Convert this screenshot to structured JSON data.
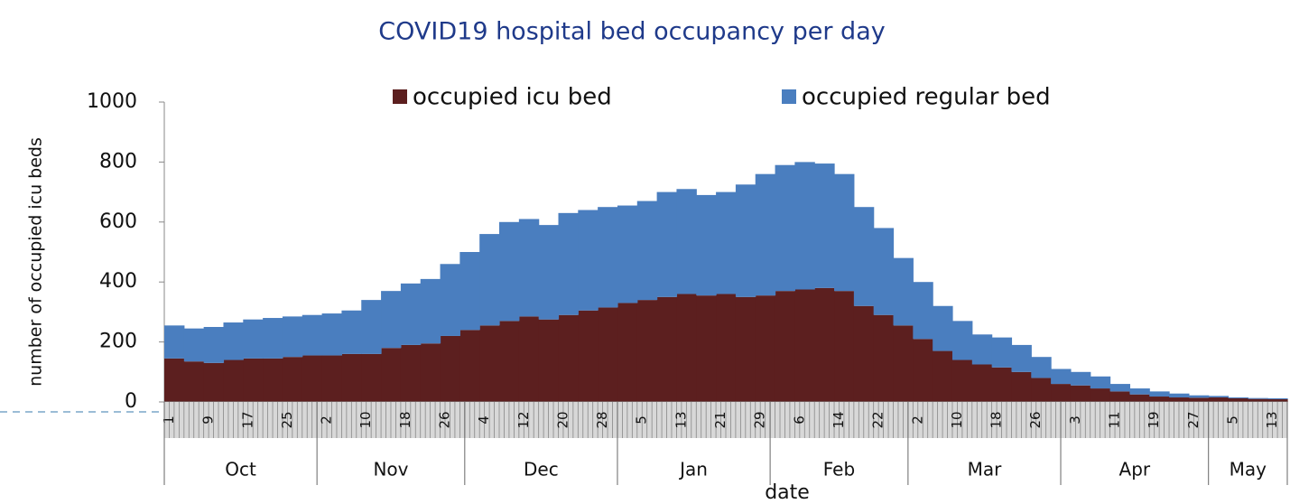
{
  "chart_data": {
    "type": "bar",
    "stacked": true,
    "title": "COVID19 hospital bed occupancy per day",
    "y_label": "number of occupied icu beds",
    "x_label": "date",
    "categories": [
      "1",
      null,
      "9",
      null,
      "17",
      null,
      "25",
      null,
      "2",
      null,
      "10",
      null,
      "18",
      null,
      "26",
      null,
      "4",
      null,
      "12",
      null,
      "20",
      null,
      "28",
      null,
      "5",
      null,
      "13",
      null,
      "21",
      null,
      "29",
      null,
      "6",
      null,
      "14",
      null,
      "22",
      null,
      "2",
      null,
      "10",
      null,
      "18",
      null,
      "26",
      null,
      "3",
      null,
      "11",
      null,
      "19",
      null,
      "27",
      null,
      "5",
      null,
      "13"
    ],
    "months": [
      "Oct",
      "Nov",
      "Dec",
      "Jan",
      "Feb",
      "Mar",
      "Apr",
      "May"
    ],
    "series": [
      {
        "name": "occupied icu bed",
        "color": "#5c1f1f",
        "values": [
          145,
          135,
          130,
          140,
          145,
          145,
          150,
          155,
          155,
          160,
          160,
          180,
          190,
          195,
          220,
          240,
          255,
          270,
          285,
          275,
          290,
          305,
          315,
          330,
          340,
          350,
          360,
          355,
          360,
          350,
          355,
          370,
          375,
          380,
          370,
          320,
          290,
          255,
          210,
          170,
          140,
          125,
          115,
          100,
          80,
          60,
          55,
          45,
          35,
          25,
          18,
          15,
          14,
          15,
          12,
          10,
          9
        ]
      },
      {
        "name": "occupied regular bed",
        "color": "#4a7ebf",
        "values": [
          110,
          110,
          120,
          125,
          130,
          135,
          135,
          135,
          140,
          145,
          180,
          190,
          205,
          215,
          240,
          260,
          305,
          330,
          325,
          315,
          340,
          335,
          335,
          325,
          330,
          350,
          350,
          335,
          340,
          375,
          405,
          420,
          425,
          415,
          390,
          330,
          290,
          225,
          190,
          150,
          130,
          100,
          100,
          90,
          70,
          50,
          45,
          40,
          25,
          20,
          17,
          13,
          8,
          5,
          3,
          3,
          3
        ]
      }
    ],
    "ylim": [
      0,
      1000
    ],
    "yticks": [
      0,
      200,
      400,
      600,
      800,
      1000
    ],
    "legend": "top"
  }
}
